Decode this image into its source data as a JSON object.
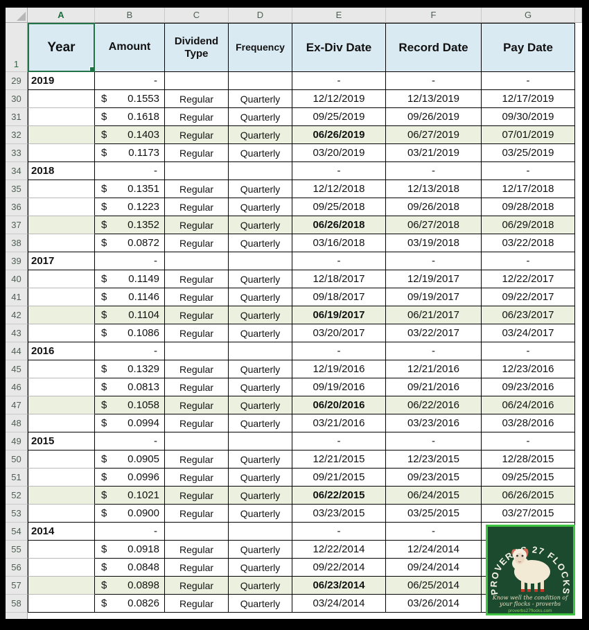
{
  "sheet": {
    "name_box_selection": "A1",
    "columns": [
      "A",
      "B",
      "C",
      "D",
      "E",
      "F",
      "G"
    ],
    "selected_column": "A",
    "header_row_number": "1",
    "headers": {
      "year": "Year",
      "amount": "Amount",
      "dividend_type": "Dividend Type",
      "frequency": "Frequency",
      "ex_div": "Ex-Div Date",
      "record": "Record Date",
      "pay": "Pay Date"
    },
    "currency_symbol": "$",
    "rows": [
      {
        "n": 29,
        "year": "2019",
        "amount": "-",
        "type": "",
        "freq": "",
        "ex": "-",
        "rec": "-",
        "pay": "-",
        "hl": false,
        "year_row": true
      },
      {
        "n": 30,
        "year": "",
        "amount": "0.1553",
        "type": "Regular",
        "freq": "Quarterly",
        "ex": "12/12/2019",
        "rec": "12/13/2019",
        "pay": "12/17/2019",
        "hl": false,
        "year_row": false
      },
      {
        "n": 31,
        "year": "",
        "amount": "0.1618",
        "type": "Regular",
        "freq": "Quarterly",
        "ex": "09/25/2019",
        "rec": "09/26/2019",
        "pay": "09/30/2019",
        "hl": false,
        "year_row": false
      },
      {
        "n": 32,
        "year": "",
        "amount": "0.1403",
        "type": "Regular",
        "freq": "Quarterly",
        "ex": "06/26/2019",
        "rec": "06/27/2019",
        "pay": "07/01/2019",
        "hl": true,
        "year_row": false
      },
      {
        "n": 33,
        "year": "",
        "amount": "0.1173",
        "type": "Regular",
        "freq": "Quarterly",
        "ex": "03/20/2019",
        "rec": "03/21/2019",
        "pay": "03/25/2019",
        "hl": false,
        "year_row": false
      },
      {
        "n": 34,
        "year": "2018",
        "amount": "-",
        "type": "",
        "freq": "",
        "ex": "-",
        "rec": "-",
        "pay": "-",
        "hl": false,
        "year_row": true
      },
      {
        "n": 35,
        "year": "",
        "amount": "0.1351",
        "type": "Regular",
        "freq": "Quarterly",
        "ex": "12/12/2018",
        "rec": "12/13/2018",
        "pay": "12/17/2018",
        "hl": false,
        "year_row": false
      },
      {
        "n": 36,
        "year": "",
        "amount": "0.1223",
        "type": "Regular",
        "freq": "Quarterly",
        "ex": "09/25/2018",
        "rec": "09/26/2018",
        "pay": "09/28/2018",
        "hl": false,
        "year_row": false
      },
      {
        "n": 37,
        "year": "",
        "amount": "0.1352",
        "type": "Regular",
        "freq": "Quarterly",
        "ex": "06/26/2018",
        "rec": "06/27/2018",
        "pay": "06/29/2018",
        "hl": true,
        "year_row": false
      },
      {
        "n": 38,
        "year": "",
        "amount": "0.0872",
        "type": "Regular",
        "freq": "Quarterly",
        "ex": "03/16/2018",
        "rec": "03/19/2018",
        "pay": "03/22/2018",
        "hl": false,
        "year_row": false
      },
      {
        "n": 39,
        "year": "2017",
        "amount": "-",
        "type": "",
        "freq": "",
        "ex": "-",
        "rec": "-",
        "pay": "-",
        "hl": false,
        "year_row": true
      },
      {
        "n": 40,
        "year": "",
        "amount": "0.1149",
        "type": "Regular",
        "freq": "Quarterly",
        "ex": "12/18/2017",
        "rec": "12/19/2017",
        "pay": "12/22/2017",
        "hl": false,
        "year_row": false
      },
      {
        "n": 41,
        "year": "",
        "amount": "0.1146",
        "type": "Regular",
        "freq": "Quarterly",
        "ex": "09/18/2017",
        "rec": "09/19/2017",
        "pay": "09/22/2017",
        "hl": false,
        "year_row": false
      },
      {
        "n": 42,
        "year": "",
        "amount": "0.1104",
        "type": "Regular",
        "freq": "Quarterly",
        "ex": "06/19/2017",
        "rec": "06/21/2017",
        "pay": "06/23/2017",
        "hl": true,
        "year_row": false
      },
      {
        "n": 43,
        "year": "",
        "amount": "0.1086",
        "type": "Regular",
        "freq": "Quarterly",
        "ex": "03/20/2017",
        "rec": "03/22/2017",
        "pay": "03/24/2017",
        "hl": false,
        "year_row": false
      },
      {
        "n": 44,
        "year": "2016",
        "amount": "-",
        "type": "",
        "freq": "",
        "ex": "-",
        "rec": "-",
        "pay": "-",
        "hl": false,
        "year_row": true
      },
      {
        "n": 45,
        "year": "",
        "amount": "0.1329",
        "type": "Regular",
        "freq": "Quarterly",
        "ex": "12/19/2016",
        "rec": "12/21/2016",
        "pay": "12/23/2016",
        "hl": false,
        "year_row": false
      },
      {
        "n": 46,
        "year": "",
        "amount": "0.0813",
        "type": "Regular",
        "freq": "Quarterly",
        "ex": "09/19/2016",
        "rec": "09/21/2016",
        "pay": "09/23/2016",
        "hl": false,
        "year_row": false
      },
      {
        "n": 47,
        "year": "",
        "amount": "0.1058",
        "type": "Regular",
        "freq": "Quarterly",
        "ex": "06/20/2016",
        "rec": "06/22/2016",
        "pay": "06/24/2016",
        "hl": true,
        "year_row": false
      },
      {
        "n": 48,
        "year": "",
        "amount": "0.0994",
        "type": "Regular",
        "freq": "Quarterly",
        "ex": "03/21/2016",
        "rec": "03/23/2016",
        "pay": "03/28/2016",
        "hl": false,
        "year_row": false
      },
      {
        "n": 49,
        "year": "2015",
        "amount": "-",
        "type": "",
        "freq": "",
        "ex": "-",
        "rec": "-",
        "pay": "-",
        "hl": false,
        "year_row": true
      },
      {
        "n": 50,
        "year": "",
        "amount": "0.0905",
        "type": "Regular",
        "freq": "Quarterly",
        "ex": "12/21/2015",
        "rec": "12/23/2015",
        "pay": "12/28/2015",
        "hl": false,
        "year_row": false
      },
      {
        "n": 51,
        "year": "",
        "amount": "0.0996",
        "type": "Regular",
        "freq": "Quarterly",
        "ex": "09/21/2015",
        "rec": "09/23/2015",
        "pay": "09/25/2015",
        "hl": false,
        "year_row": false
      },
      {
        "n": 52,
        "year": "",
        "amount": "0.1021",
        "type": "Regular",
        "freq": "Quarterly",
        "ex": "06/22/2015",
        "rec": "06/24/2015",
        "pay": "06/26/2015",
        "hl": true,
        "year_row": false
      },
      {
        "n": 53,
        "year": "",
        "amount": "0.0900",
        "type": "Regular",
        "freq": "Quarterly",
        "ex": "03/23/2015",
        "rec": "03/25/2015",
        "pay": "03/27/2015",
        "hl": false,
        "year_row": false
      },
      {
        "n": 54,
        "year": "2014",
        "amount": "-",
        "type": "",
        "freq": "",
        "ex": "-",
        "rec": "-",
        "pay": "",
        "hl": false,
        "year_row": true
      },
      {
        "n": 55,
        "year": "",
        "amount": "0.0918",
        "type": "Regular",
        "freq": "Quarterly",
        "ex": "12/22/2014",
        "rec": "12/24/2014",
        "pay": "",
        "hl": false,
        "year_row": false
      },
      {
        "n": 56,
        "year": "",
        "amount": "0.0848",
        "type": "Regular",
        "freq": "Quarterly",
        "ex": "09/22/2014",
        "rec": "09/24/2014",
        "pay": "",
        "hl": false,
        "year_row": false
      },
      {
        "n": 57,
        "year": "",
        "amount": "0.0898",
        "type": "Regular",
        "freq": "Quarterly",
        "ex": "06/23/2014",
        "rec": "06/25/2014",
        "pay": "",
        "hl": true,
        "year_row": false
      },
      {
        "n": 58,
        "year": "",
        "amount": "0.0826",
        "type": "Regular",
        "freq": "Quarterly",
        "ex": "03/24/2014",
        "rec": "03/26/2014",
        "pay": "",
        "hl": false,
        "year_row": false
      }
    ]
  },
  "logo": {
    "title": "PROVERBS 27 FLOCKS",
    "tagline_line1": "Know well the condition of",
    "tagline_line2": "your flocks - proverbs",
    "footer": "proverbs27flocks.com"
  },
  "colors": {
    "header_fill": "#d9eaf3",
    "highlight_fill": "#ebf1de",
    "selection_green": "#217346",
    "logo_bg": "#1b4a2f",
    "logo_border": "#3fc43f"
  }
}
